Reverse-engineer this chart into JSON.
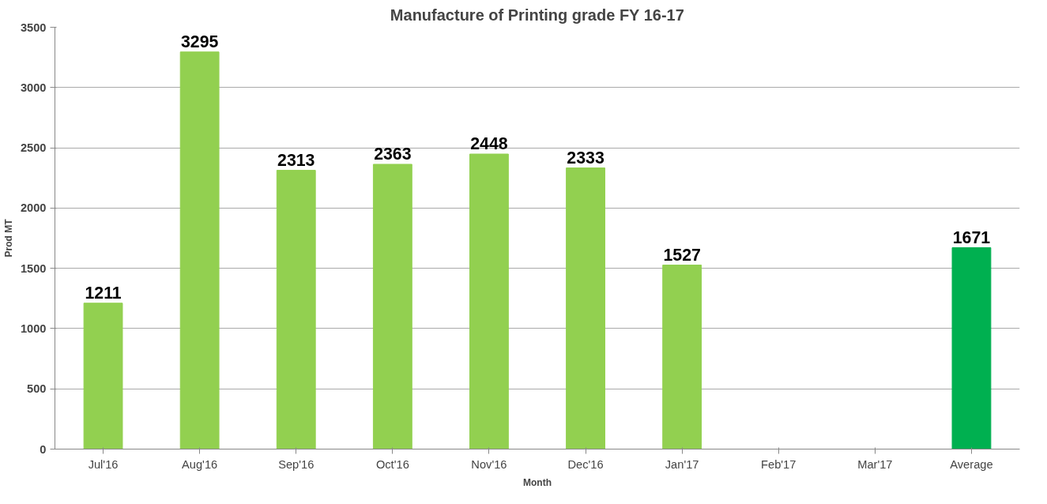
{
  "chart_data": {
    "type": "bar",
    "title": "Manufacture of Printing grade FY 16-17",
    "xlabel": "Month",
    "ylabel": "Prod MT",
    "categories": [
      "Jul'16",
      "Aug'16",
      "Sep'16",
      "Oct'16",
      "Nov'16",
      "Dec'16",
      "Jan'17",
      "Feb'17",
      "Mar'17",
      "Average"
    ],
    "values": [
      1211,
      3295,
      2313,
      2363,
      2448,
      2333,
      1527,
      null,
      null,
      1671
    ],
    "colors": [
      "#92d050",
      "#92d050",
      "#92d050",
      "#92d050",
      "#92d050",
      "#92d050",
      "#92d050",
      "#92d050",
      "#92d050",
      "#00b050"
    ],
    "ylim": [
      0,
      3500
    ],
    "yticks": [
      0,
      500,
      1000,
      1500,
      2000,
      2500,
      3000,
      3500
    ],
    "grid": "y",
    "data_labels": true
  }
}
